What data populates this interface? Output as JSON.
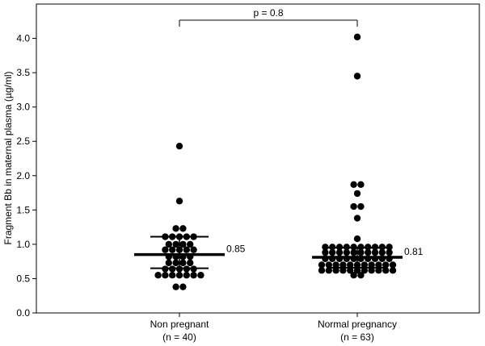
{
  "chart_data": {
    "type": "scatter",
    "subtype": "dot-plot",
    "ylabel": "Fragment Bb in maternal plasma (µg/ml)",
    "ylim": [
      0,
      4.5
    ],
    "yticks": [
      "0.0",
      "0.5",
      "1.0",
      "1.5",
      "2.0",
      "2.5",
      "3.0",
      "3.5",
      "4.0"
    ],
    "comparison": {
      "label": "p = 0.8"
    },
    "groups": [
      {
        "name": "Non pregnant",
        "n_label": "(n = 40)",
        "median": 0.85,
        "median_label": "0.85",
        "q1": 0.65,
        "q3": 1.11,
        "values": [
          2.43,
          1.63,
          1.23,
          1.23,
          1.11,
          1.11,
          1.11,
          1.11,
          1.11,
          1.0,
          1.0,
          1.0,
          1.0,
          0.92,
          0.92,
          0.92,
          0.92,
          0.92,
          0.82,
          0.82,
          0.82,
          0.82,
          0.73,
          0.73,
          0.73,
          0.73,
          0.64,
          0.64,
          0.64,
          0.64,
          0.64,
          0.55,
          0.55,
          0.55,
          0.55,
          0.55,
          0.55,
          0.55,
          0.38,
          0.38
        ]
      },
      {
        "name": "Normal pregnancy",
        "n_label": "(n = 63)",
        "median": 0.81,
        "median_label": "0.81",
        "q1": 0.66,
        "q3": 0.95,
        "values": [
          4.02,
          3.45,
          1.87,
          1.87,
          1.74,
          1.55,
          1.55,
          1.38,
          1.08,
          0.96,
          0.96,
          0.96,
          0.96,
          0.96,
          0.96,
          0.96,
          0.96,
          0.96,
          0.96,
          0.88,
          0.88,
          0.88,
          0.88,
          0.88,
          0.88,
          0.88,
          0.88,
          0.88,
          0.88,
          0.79,
          0.79,
          0.79,
          0.79,
          0.79,
          0.79,
          0.79,
          0.79,
          0.79,
          0.79,
          0.7,
          0.7,
          0.7,
          0.7,
          0.7,
          0.7,
          0.7,
          0.7,
          0.7,
          0.7,
          0.7,
          0.62,
          0.62,
          0.62,
          0.62,
          0.62,
          0.62,
          0.62,
          0.62,
          0.62,
          0.62,
          0.62,
          0.55,
          0.55
        ]
      }
    ]
  }
}
